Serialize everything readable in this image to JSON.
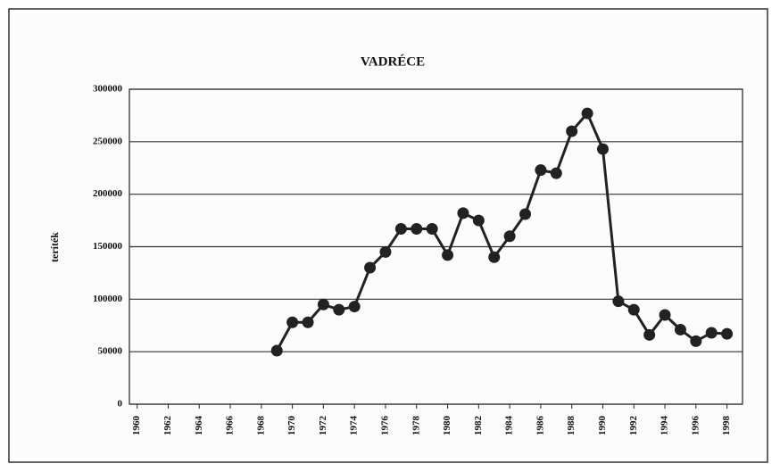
{
  "chart_data": {
    "type": "line",
    "title": "VADRÉCE",
    "y_label": "teríték",
    "x": [
      1969,
      1970,
      1971,
      1972,
      1973,
      1974,
      1975,
      1976,
      1977,
      1978,
      1979,
      1980,
      1981,
      1982,
      1983,
      1984,
      1985,
      1986,
      1987,
      1988,
      1989,
      1990,
      1991,
      1992,
      1993,
      1994,
      1995,
      1996,
      1997,
      1998
    ],
    "series": [
      {
        "name": "teríték",
        "color": "#222222",
        "values": [
          51000,
          78000,
          78000,
          95000,
          90000,
          93000,
          130000,
          145000,
          167000,
          167000,
          167000,
          142000,
          182000,
          175000,
          140000,
          160000,
          181000,
          223000,
          220000,
          260000,
          277000,
          243000,
          98000,
          90000,
          66000,
          85000,
          71000,
          60000,
          68000,
          67000
        ]
      }
    ],
    "xlim": [
      1959.5,
      1999
    ],
    "xticks": [
      1960,
      1962,
      1964,
      1966,
      1968,
      1970,
      1972,
      1974,
      1976,
      1978,
      1980,
      1982,
      1984,
      1986,
      1988,
      1990,
      1992,
      1994,
      1996,
      1998
    ],
    "ylim": [
      0,
      300000
    ],
    "yticks": [
      0,
      50000,
      100000,
      150000,
      200000,
      250000,
      300000
    ],
    "grid": true
  }
}
